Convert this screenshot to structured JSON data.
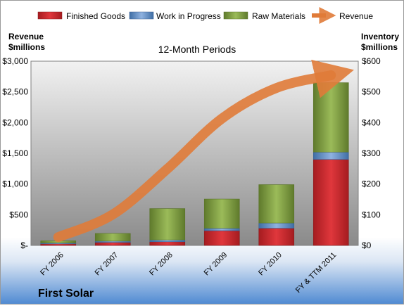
{
  "company": "First Solar",
  "chart_data": {
    "type": "bar",
    "subtype": "stacked-bar-with-line",
    "title": "12-Month Periods",
    "categories": [
      "FY 2006",
      "FY 2007",
      "FY 2008",
      "FY 2009",
      "FY 2010",
      "FY & TTM 2011"
    ],
    "left_axis": {
      "label_line1": "Revenue",
      "label_line2": "$millions",
      "ylim": [
        0,
        3000
      ],
      "ticks": [
        0,
        500,
        1000,
        1500,
        2000,
        2500,
        3000
      ],
      "tick_labels": [
        "$-",
        "$500",
        "$1,000",
        "$1,500",
        "$2,000",
        "$2,500",
        "$3,000"
      ]
    },
    "right_axis": {
      "label_line1": "Inventory",
      "label_line2": "$millions",
      "ylim": [
        0,
        600
      ],
      "ticks": [
        0,
        100,
        200,
        300,
        400,
        500,
        600
      ],
      "tick_labels": [
        "$0",
        "$100",
        "$200",
        "$300",
        "$400",
        "$500",
        "$600"
      ]
    },
    "series": [
      {
        "name": "Finished Goods",
        "axis": "right",
        "color": "#c0262b",
        "values": [
          5,
          10,
          12,
          48,
          56,
          280
        ]
      },
      {
        "name": "Work in Progress",
        "axis": "right",
        "color": "#4f81bd",
        "values": [
          3,
          4,
          6,
          8,
          17,
          24
        ]
      },
      {
        "name": "Raw Materials",
        "axis": "right",
        "color": "#77933c",
        "values": [
          7,
          25,
          102,
          95,
          125,
          226
        ]
      },
      {
        "name": "Revenue",
        "axis": "left",
        "type": "line",
        "color": "#e46c0a",
        "values": [
          135,
          504,
          1246,
          2066,
          2564,
          2771
        ]
      }
    ],
    "legend_position": "top",
    "grid": false
  }
}
